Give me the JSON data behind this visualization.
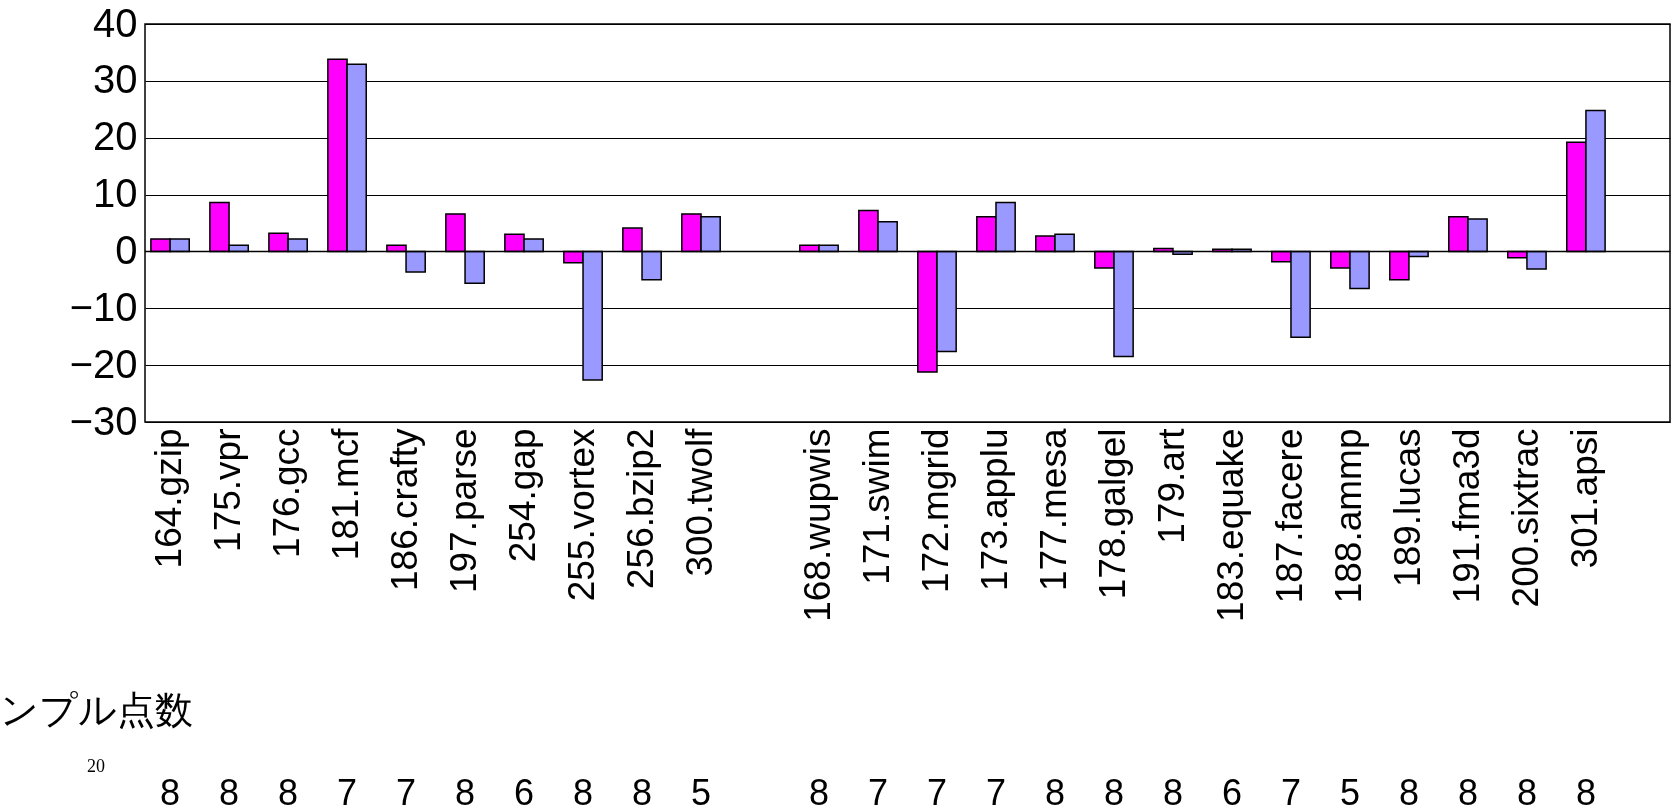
{
  "chart_data": {
    "type": "bar",
    "categories": [
      "164.gzip",
      "175.vpr",
      "176.gcc",
      "181.mcf",
      "186.crafty",
      "197.parse",
      "254.gap",
      "255.vortex",
      "256.bzip2",
      "300.twolf",
      null,
      "168.wupwis",
      "171.swim",
      "172.mgrid",
      "173.applu",
      "177.mesa",
      "178.galgel",
      "179.art",
      "183.equake",
      "187.facere",
      "188.ammp",
      "189.lucas",
      "191.fma3d",
      "200.sixtrac",
      "301.apsi",
      null
    ],
    "series": [
      {
        "color": "#ff00ff",
        "values": [
          2.2,
          8.6,
          3.2,
          33.8,
          1.1,
          6.6,
          3.0,
          -2.0,
          4.1,
          6.6,
          null,
          1.1,
          7.2,
          -21.2,
          6.1,
          2.7,
          -2.9,
          0.5,
          0.4,
          -1.8,
          -2.9,
          -5.0,
          6.1,
          -1.1,
          19.2,
          null
        ]
      },
      {
        "color": "#9999ff",
        "values": [
          2.2,
          1.1,
          2.2,
          32.9,
          -3.6,
          -5.6,
          2.2,
          -22.6,
          -5.0,
          6.1,
          null,
          1.1,
          5.2,
          -17.6,
          8.6,
          3.0,
          -18.5,
          -0.5,
          0.4,
          -15.1,
          -6.5,
          -0.9,
          5.7,
          -3.1,
          24.8,
          null
        ]
      }
    ],
    "ylim": [
      -30,
      40
    ],
    "yticks": [
      -30,
      -20,
      -10,
      0,
      10,
      20,
      30,
      40
    ],
    "grid": "y",
    "annotations": [
      "ンプル点数",
      "20",
      "8",
      "8",
      "8",
      "7",
      "7",
      "8",
      "6",
      "8",
      "8",
      "5",
      "8",
      "7",
      "7",
      "7",
      "8",
      "8",
      "8",
      "6",
      "7",
      "5",
      "8",
      "8",
      "8",
      "8"
    ]
  }
}
